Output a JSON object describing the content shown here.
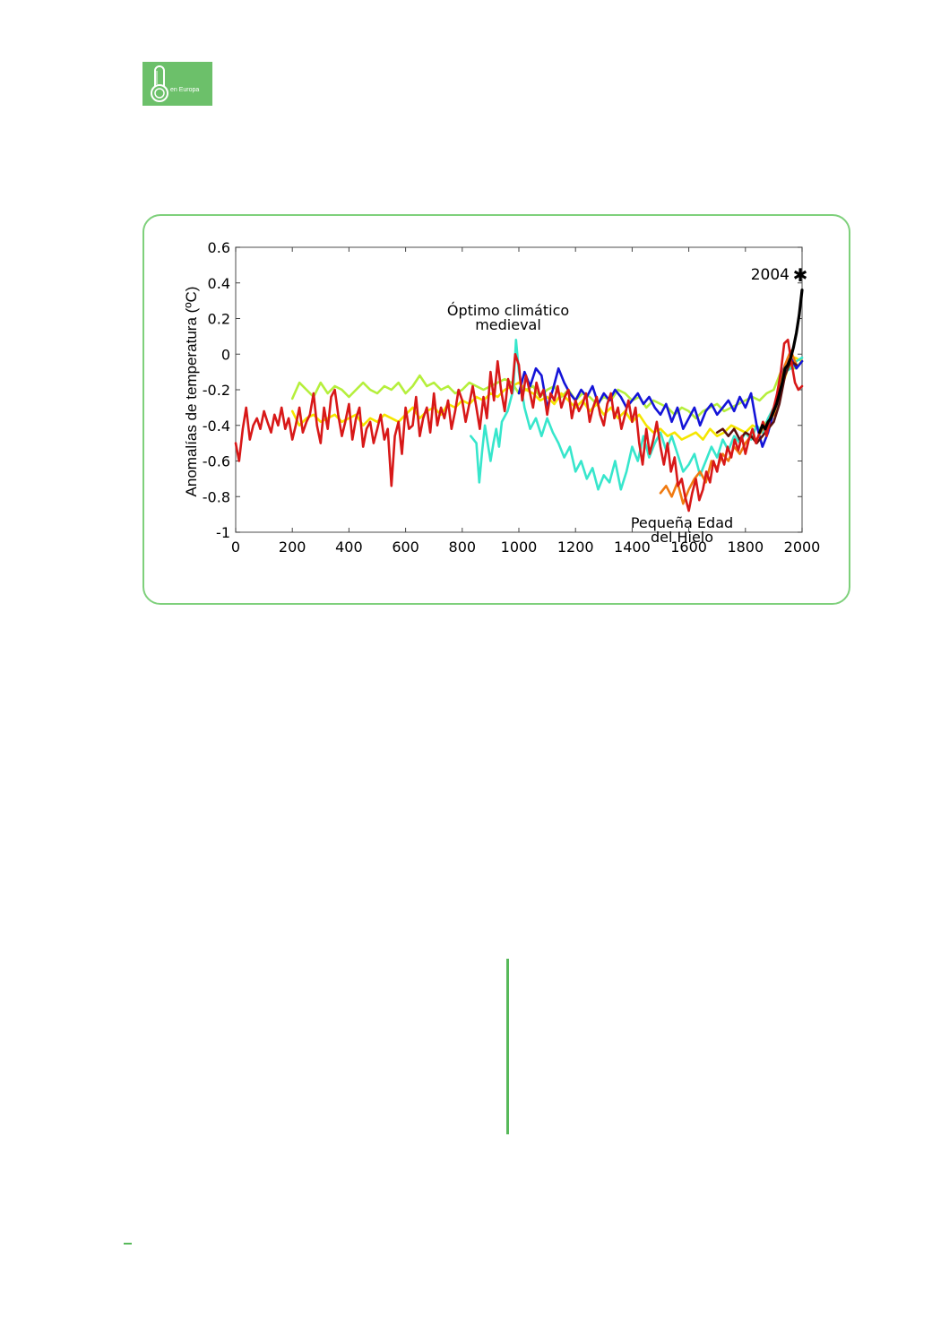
{
  "logo": {
    "text": "en Europa",
    "icon": "thermometer-co2-icon",
    "background": "#6cc06a"
  },
  "colors": {
    "frame_border": "#7ed07b",
    "divider": "#57b95a"
  },
  "chart_data": {
    "type": "line",
    "title": "",
    "xlabel": "",
    "ylabel": "Anomalías de temperatura (ºC)",
    "xlim": [
      0,
      2000
    ],
    "ylim": [
      -1,
      0.6
    ],
    "xticks": [
      "0",
      "200",
      "400",
      "600",
      "800",
      "1000",
      "1200",
      "1400",
      "1600",
      "1800",
      "2000"
    ],
    "yticks": [
      "0.6",
      "0.4",
      "0.2",
      "0",
      "-0.2",
      "-0.4",
      "-0.6",
      "-0.8",
      "-1"
    ],
    "grid": false,
    "annotations": [
      {
        "lines": [
          "Óptimo climático",
          "medieval"
        ]
      },
      {
        "lines": [
          "Pequeña Edad",
          "del Hielo"
        ]
      },
      {
        "text": "2004",
        "marker": "✱"
      }
    ],
    "series": [
      {
        "color": "#b5ef3c",
        "x": [
          200,
          225,
          250,
          275,
          300,
          325,
          350,
          375,
          400,
          425,
          450,
          475,
          500,
          525,
          550,
          575,
          600,
          625,
          650,
          675,
          700,
          725,
          750,
          775,
          800,
          825,
          850,
          875,
          900,
          925,
          950,
          975,
          1000,
          1025,
          1050,
          1075,
          1100,
          1125,
          1150,
          1175,
          1200,
          1225,
          1250,
          1275,
          1300,
          1325,
          1350,
          1375,
          1400,
          1425,
          1450,
          1475,
          1500,
          1525,
          1550,
          1575,
          1600,
          1625,
          1650,
          1675,
          1700,
          1725,
          1750,
          1775,
          1800,
          1825,
          1850,
          1875,
          1900,
          1925,
          1950,
          1975,
          2000
        ],
        "y": [
          -0.25,
          -0.16,
          -0.2,
          -0.24,
          -0.16,
          -0.22,
          -0.18,
          -0.2,
          -0.24,
          -0.2,
          -0.16,
          -0.2,
          -0.22,
          -0.18,
          -0.2,
          -0.16,
          -0.22,
          -0.18,
          -0.12,
          -0.18,
          -0.16,
          -0.2,
          -0.18,
          -0.22,
          -0.2,
          -0.16,
          -0.18,
          -0.2,
          -0.18,
          -0.16,
          -0.14,
          -0.16,
          -0.22,
          -0.2,
          -0.18,
          -0.24,
          -0.2,
          -0.18,
          -0.24,
          -0.2,
          -0.26,
          -0.22,
          -0.24,
          -0.28,
          -0.24,
          -0.26,
          -0.2,
          -0.22,
          -0.26,
          -0.24,
          -0.3,
          -0.26,
          -0.28,
          -0.3,
          -0.34,
          -0.3,
          -0.32,
          -0.36,
          -0.32,
          -0.3,
          -0.28,
          -0.32,
          -0.3,
          -0.28,
          -0.26,
          -0.24,
          -0.26,
          -0.22,
          -0.2,
          -0.1,
          -0.06,
          -0.08,
          -0.04
        ]
      },
      {
        "color": "#f5e600",
        "x": [
          200,
          225,
          250,
          275,
          300,
          325,
          350,
          375,
          400,
          425,
          450,
          475,
          500,
          525,
          550,
          575,
          600,
          625,
          650,
          675,
          700,
          725,
          750,
          775,
          800,
          825,
          850,
          875,
          900,
          925,
          950,
          975,
          1000,
          1025,
          1050,
          1075,
          1100,
          1125,
          1150,
          1175,
          1200,
          1225,
          1250,
          1275,
          1300,
          1325,
          1350,
          1375,
          1400,
          1425,
          1450,
          1475,
          1500,
          1525,
          1550,
          1575,
          1600,
          1625,
          1650,
          1675,
          1700,
          1725,
          1750,
          1775,
          1800,
          1825,
          1850,
          1875,
          1900,
          1925,
          1950,
          1975,
          2000
        ],
        "y": [
          -0.32,
          -0.4,
          -0.36,
          -0.34,
          -0.38,
          -0.36,
          -0.34,
          -0.38,
          -0.36,
          -0.34,
          -0.4,
          -0.36,
          -0.38,
          -0.34,
          -0.36,
          -0.38,
          -0.34,
          -0.3,
          -0.36,
          -0.32,
          -0.3,
          -0.34,
          -0.28,
          -0.3,
          -0.26,
          -0.28,
          -0.24,
          -0.26,
          -0.22,
          -0.24,
          -0.2,
          -0.18,
          -0.16,
          -0.2,
          -0.22,
          -0.26,
          -0.24,
          -0.28,
          -0.22,
          -0.26,
          -0.3,
          -0.26,
          -0.32,
          -0.28,
          -0.34,
          -0.3,
          -0.36,
          -0.32,
          -0.38,
          -0.34,
          -0.4,
          -0.44,
          -0.42,
          -0.46,
          -0.44,
          -0.48,
          -0.46,
          -0.44,
          -0.48,
          -0.42,
          -0.46,
          -0.44,
          -0.4,
          -0.42,
          -0.44,
          -0.4,
          -0.42,
          -0.38,
          -0.34,
          -0.2,
          -0.08,
          -0.02,
          -0.04
        ]
      },
      {
        "color": "#37e6cc",
        "x": [
          830,
          850,
          860,
          870,
          880,
          890,
          900,
          910,
          920,
          930,
          940,
          960,
          980,
          990,
          1000,
          1020,
          1040,
          1060,
          1080,
          1100,
          1120,
          1140,
          1160,
          1180,
          1200,
          1220,
          1240,
          1260,
          1280,
          1300,
          1320,
          1340,
          1360,
          1380,
          1400,
          1420,
          1440,
          1460,
          1480,
          1500,
          1520,
          1540,
          1560,
          1580,
          1600,
          1620,
          1640,
          1660,
          1680,
          1700,
          1720,
          1740,
          1760,
          1780,
          1800,
          1820,
          1840,
          1860,
          1880,
          1900,
          1920,
          1940,
          1960,
          1980,
          2000
        ],
        "y": [
          -0.46,
          -0.5,
          -0.72,
          -0.55,
          -0.4,
          -0.5,
          -0.6,
          -0.5,
          -0.42,
          -0.52,
          -0.38,
          -0.32,
          -0.2,
          0.08,
          -0.1,
          -0.3,
          -0.42,
          -0.36,
          -0.46,
          -0.36,
          -0.44,
          -0.5,
          -0.58,
          -0.52,
          -0.66,
          -0.6,
          -0.7,
          -0.64,
          -0.76,
          -0.68,
          -0.72,
          -0.6,
          -0.76,
          -0.66,
          -0.52,
          -0.6,
          -0.46,
          -0.58,
          -0.5,
          -0.44,
          -0.54,
          -0.46,
          -0.56,
          -0.66,
          -0.62,
          -0.56,
          -0.68,
          -0.6,
          -0.52,
          -0.58,
          -0.48,
          -0.54,
          -0.46,
          -0.5,
          -0.44,
          -0.48,
          -0.4,
          -0.44,
          -0.36,
          -0.3,
          -0.2,
          -0.1,
          -0.08,
          -0.04,
          -0.02
        ]
      },
      {
        "color": "#1414d8",
        "x": [
          1000,
          1020,
          1040,
          1060,
          1080,
          1100,
          1120,
          1140,
          1160,
          1180,
          1200,
          1220,
          1240,
          1260,
          1280,
          1300,
          1320,
          1340,
          1360,
          1380,
          1400,
          1420,
          1440,
          1460,
          1480,
          1500,
          1520,
          1540,
          1560,
          1580,
          1600,
          1620,
          1640,
          1660,
          1680,
          1700,
          1720,
          1740,
          1760,
          1780,
          1800,
          1820,
          1840,
          1860,
          1880,
          1900,
          1920,
          1940,
          1960,
          1980,
          2000
        ],
        "y": [
          -0.22,
          -0.1,
          -0.18,
          -0.08,
          -0.12,
          -0.3,
          -0.2,
          -0.08,
          -0.16,
          -0.22,
          -0.26,
          -0.2,
          -0.24,
          -0.18,
          -0.28,
          -0.22,
          -0.26,
          -0.2,
          -0.24,
          -0.3,
          -0.26,
          -0.22,
          -0.28,
          -0.24,
          -0.3,
          -0.34,
          -0.28,
          -0.38,
          -0.3,
          -0.42,
          -0.36,
          -0.3,
          -0.4,
          -0.32,
          -0.28,
          -0.34,
          -0.3,
          -0.26,
          -0.32,
          -0.24,
          -0.3,
          -0.22,
          -0.4,
          -0.52,
          -0.44,
          -0.32,
          -0.16,
          -0.06,
          -0.02,
          -0.08,
          -0.04
        ]
      },
      {
        "color": "#f07a10",
        "x": [
          1500,
          1520,
          1540,
          1560,
          1580,
          1600,
          1620,
          1640,
          1660,
          1680,
          1700,
          1720,
          1740,
          1760,
          1780,
          1800,
          1820,
          1840,
          1860,
          1880,
          1900,
          1920,
          1940,
          1960,
          1980
        ],
        "y": [
          -0.78,
          -0.74,
          -0.8,
          -0.72,
          -0.84,
          -0.76,
          -0.7,
          -0.66,
          -0.72,
          -0.6,
          -0.64,
          -0.56,
          -0.6,
          -0.52,
          -0.56,
          -0.5,
          -0.46,
          -0.48,
          -0.42,
          -0.38,
          -0.34,
          -0.2,
          -0.06,
          0.02,
          -0.06
        ]
      },
      {
        "color": "#5a1010",
        "x": [
          1700,
          1720,
          1740,
          1760,
          1780,
          1800,
          1820,
          1840,
          1860,
          1880,
          1900,
          1920,
          1940,
          1960,
          1980
        ],
        "y": [
          -0.44,
          -0.42,
          -0.46,
          -0.42,
          -0.48,
          -0.44,
          -0.46,
          -0.5,
          -0.46,
          -0.42,
          -0.38,
          -0.28,
          -0.12,
          -0.04,
          -0.06
        ]
      },
      {
        "color": "#d81818",
        "x": [
          0,
          12,
          25,
          37,
          50,
          62,
          75,
          87,
          100,
          112,
          125,
          137,
          150,
          162,
          175,
          187,
          200,
          212,
          225,
          237,
          250,
          262,
          275,
          287,
          300,
          312,
          325,
          337,
          350,
          362,
          375,
          387,
          400,
          412,
          425,
          437,
          450,
          462,
          475,
          487,
          500,
          512,
          525,
          537,
          550,
          562,
          575,
          587,
          600,
          612,
          625,
          637,
          650,
          662,
          675,
          687,
          700,
          712,
          725,
          737,
          750,
          762,
          775,
          787,
          800,
          812,
          825,
          837,
          850,
          862,
          875,
          887,
          900,
          912,
          925,
          937,
          950,
          962,
          975,
          987,
          1000,
          1012,
          1025,
          1037,
          1050,
          1062,
          1075,
          1087,
          1100,
          1112,
          1125,
          1137,
          1150,
          1162,
          1175,
          1187,
          1200,
          1212,
          1225,
          1237,
          1250,
          1262,
          1275,
          1287,
          1300,
          1312,
          1325,
          1337,
          1350,
          1362,
          1375,
          1387,
          1400,
          1412,
          1425,
          1437,
          1450,
          1462,
          1475,
          1487,
          1500,
          1512,
          1525,
          1537,
          1550,
          1562,
          1575,
          1587,
          1600,
          1612,
          1625,
          1637,
          1650,
          1662,
          1675,
          1687,
          1700,
          1712,
          1725,
          1737,
          1750,
          1762,
          1775,
          1787,
          1800,
          1812,
          1825,
          1837,
          1850,
          1862,
          1875,
          1887,
          1900,
          1912,
          1925,
          1937,
          1950,
          1962,
          1975,
          1987,
          2000
        ],
        "y": [
          -0.5,
          -0.6,
          -0.42,
          -0.3,
          -0.48,
          -0.4,
          -0.36,
          -0.42,
          -0.32,
          -0.38,
          -0.44,
          -0.34,
          -0.4,
          -0.3,
          -0.42,
          -0.36,
          -0.48,
          -0.4,
          -0.3,
          -0.44,
          -0.38,
          -0.34,
          -0.22,
          -0.4,
          -0.5,
          -0.3,
          -0.42,
          -0.24,
          -0.2,
          -0.34,
          -0.46,
          -0.38,
          -0.28,
          -0.48,
          -0.36,
          -0.3,
          -0.52,
          -0.42,
          -0.38,
          -0.5,
          -0.42,
          -0.34,
          -0.48,
          -0.42,
          -0.74,
          -0.46,
          -0.38,
          -0.56,
          -0.3,
          -0.42,
          -0.4,
          -0.24,
          -0.46,
          -0.36,
          -0.3,
          -0.44,
          -0.22,
          -0.4,
          -0.3,
          -0.36,
          -0.26,
          -0.42,
          -0.32,
          -0.2,
          -0.26,
          -0.38,
          -0.28,
          -0.18,
          -0.3,
          -0.42,
          -0.24,
          -0.36,
          -0.1,
          -0.26,
          -0.04,
          -0.2,
          -0.32,
          -0.14,
          -0.22,
          0.0,
          -0.06,
          -0.26,
          -0.12,
          -0.2,
          -0.3,
          -0.16,
          -0.24,
          -0.2,
          -0.34,
          -0.22,
          -0.26,
          -0.18,
          -0.3,
          -0.24,
          -0.2,
          -0.36,
          -0.26,
          -0.32,
          -0.28,
          -0.22,
          -0.38,
          -0.3,
          -0.24,
          -0.34,
          -0.4,
          -0.28,
          -0.22,
          -0.36,
          -0.3,
          -0.42,
          -0.34,
          -0.26,
          -0.38,
          -0.3,
          -0.5,
          -0.62,
          -0.42,
          -0.56,
          -0.48,
          -0.38,
          -0.52,
          -0.62,
          -0.5,
          -0.66,
          -0.58,
          -0.74,
          -0.7,
          -0.8,
          -0.88,
          -0.78,
          -0.7,
          -0.82,
          -0.76,
          -0.66,
          -0.72,
          -0.6,
          -0.66,
          -0.56,
          -0.62,
          -0.52,
          -0.58,
          -0.48,
          -0.54,
          -0.46,
          -0.56,
          -0.48,
          -0.42,
          -0.5,
          -0.44,
          -0.38,
          -0.46,
          -0.36,
          -0.3,
          -0.22,
          -0.1,
          0.06,
          0.08,
          -0.04,
          -0.16,
          -0.2,
          -0.18
        ]
      },
      {
        "color": "#000000",
        "x": [
          1850,
          1860,
          1870,
          1880,
          1890,
          1900,
          1910,
          1920,
          1930,
          1940,
          1950,
          1960,
          1970,
          1980,
          1990,
          2000
        ],
        "y": [
          -0.44,
          -0.4,
          -0.42,
          -0.38,
          -0.36,
          -0.32,
          -0.28,
          -0.22,
          -0.16,
          -0.08,
          -0.06,
          -0.02,
          0.04,
          0.12,
          0.22,
          0.36
        ]
      }
    ]
  }
}
